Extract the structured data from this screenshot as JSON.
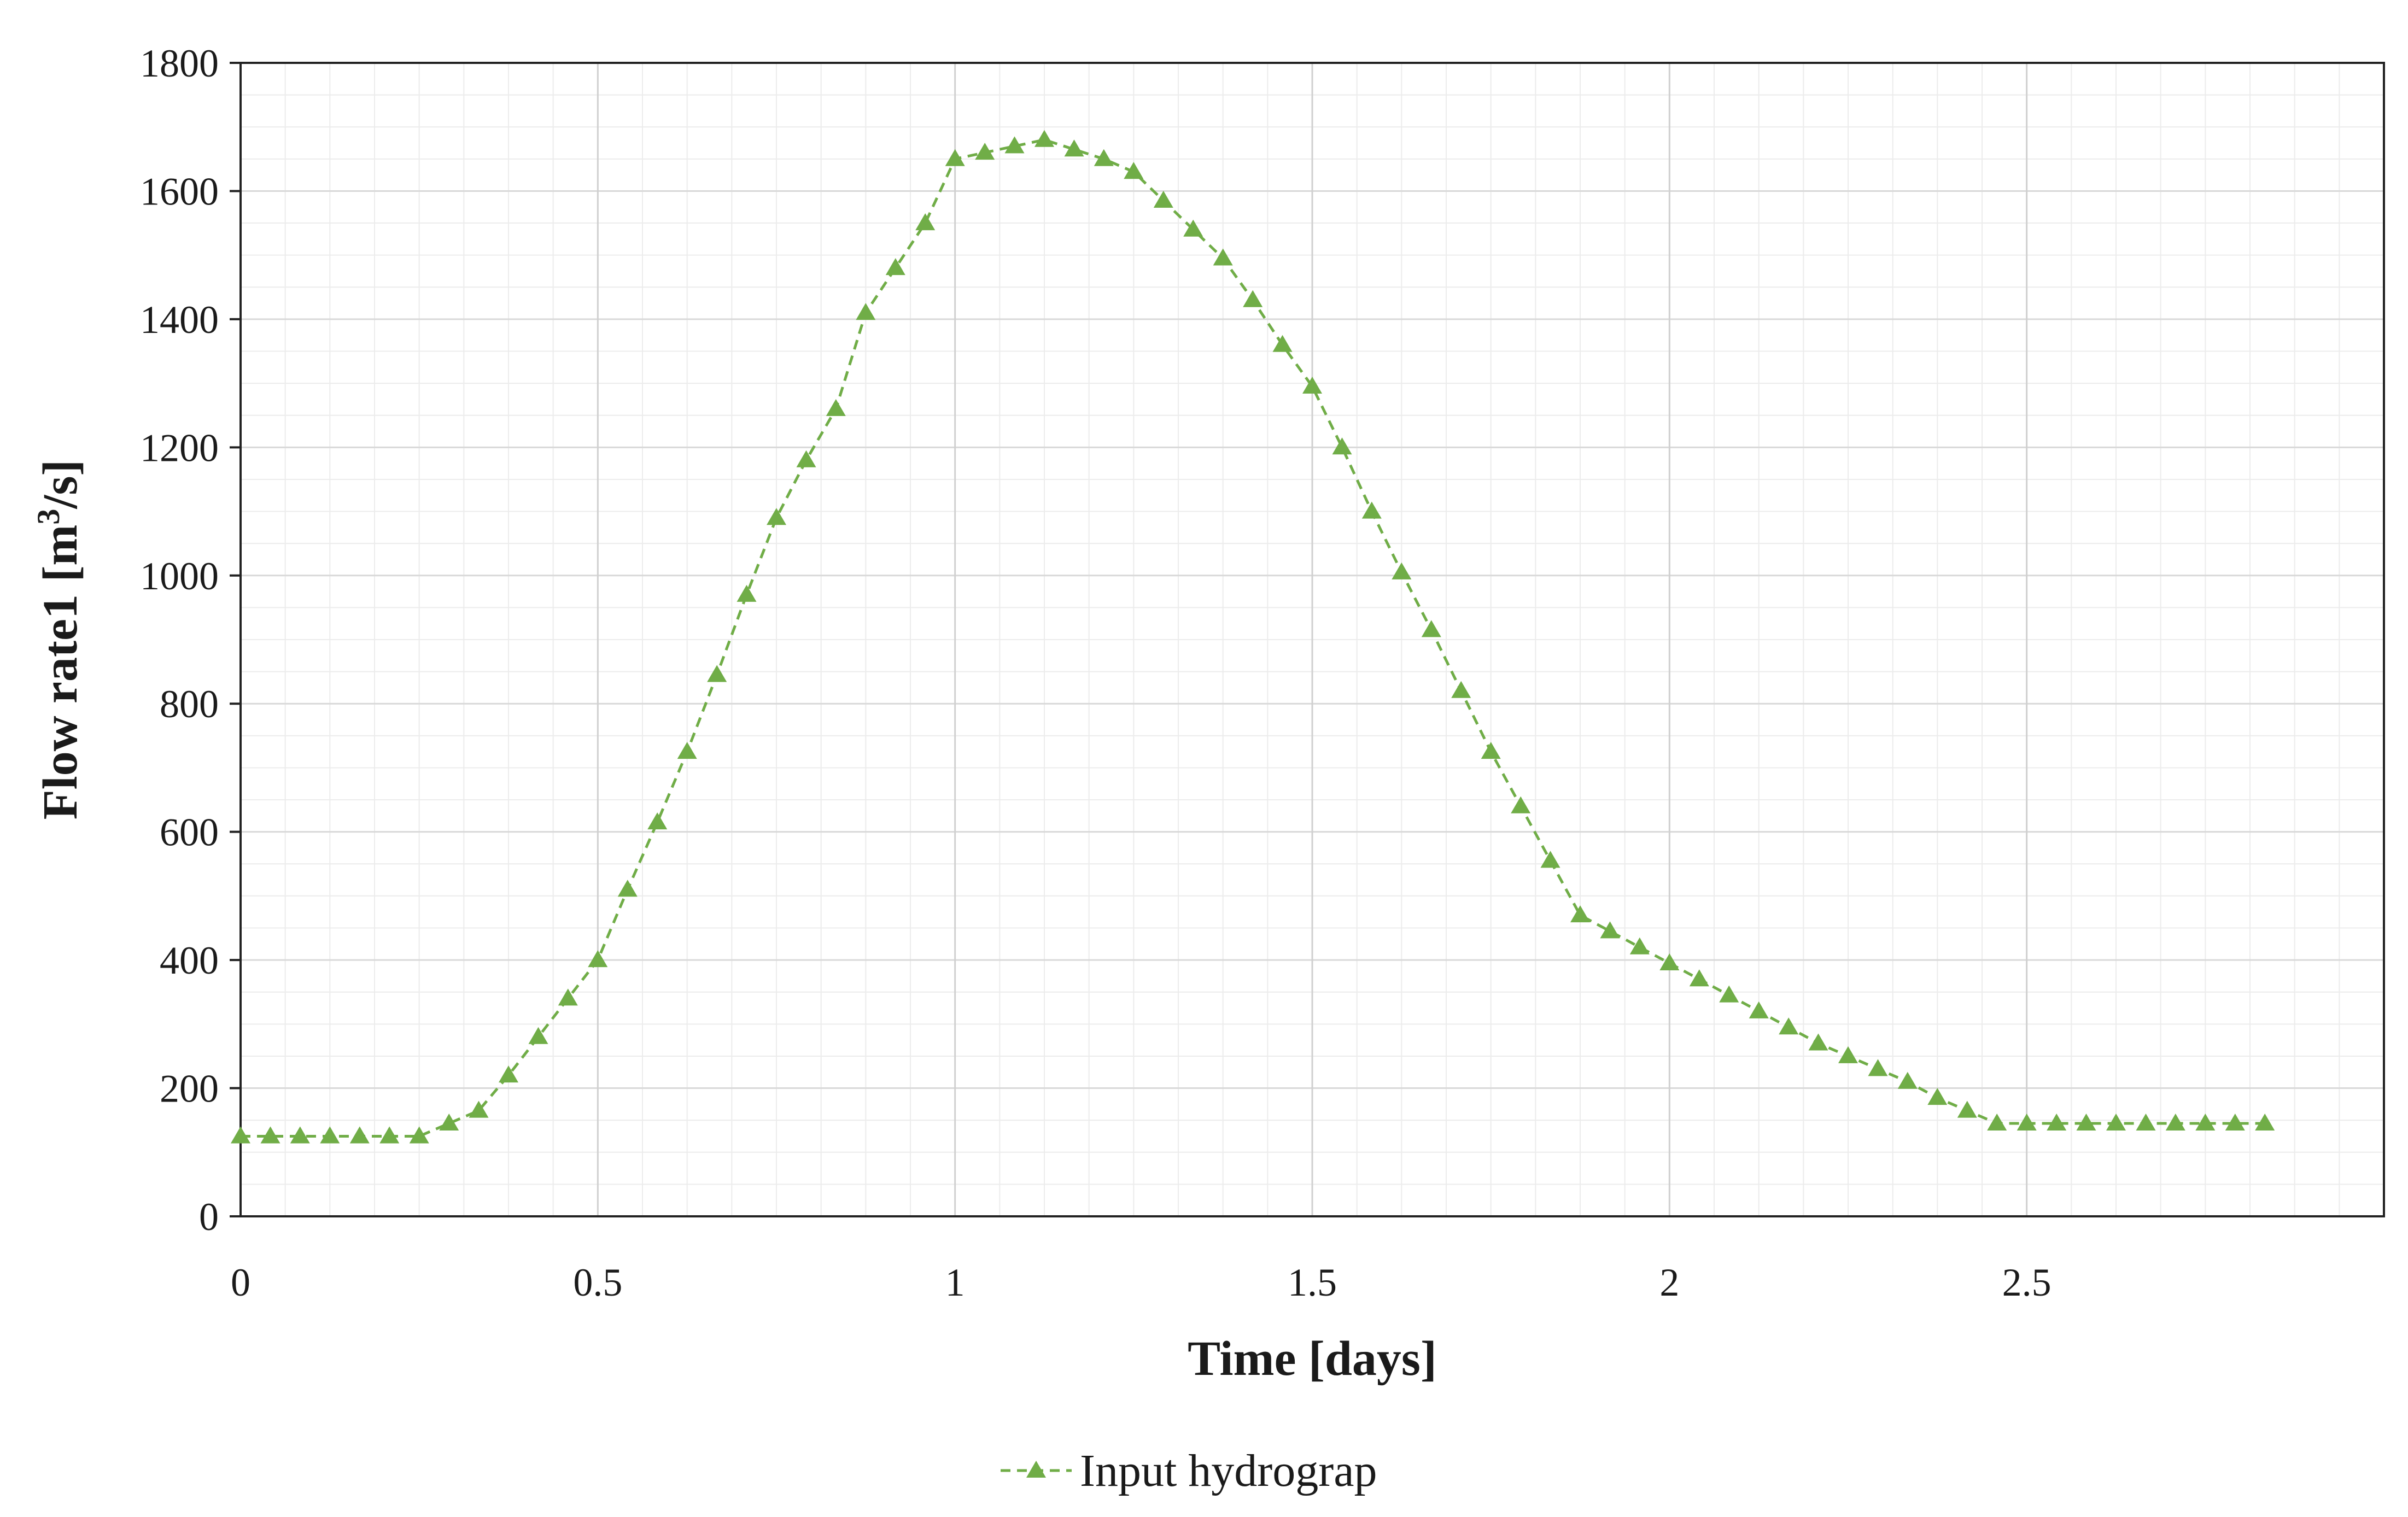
{
  "chart_data": {
    "type": "line",
    "xlabel": "Time [days]",
    "ylabel_main": "Flow rate1 [m",
    "ylabel_sup": "3",
    "ylabel_tail": "/s]",
    "xlim": [
      0,
      3.0
    ],
    "ylim": [
      0,
      1800
    ],
    "x_ticks": [
      "0",
      "0.5",
      "1",
      "1.5",
      "2",
      "2.5"
    ],
    "y_ticks": [
      "0",
      "200",
      "400",
      "600",
      "800",
      "1000",
      "1200",
      "1400",
      "1600",
      "1800"
    ],
    "grid": true,
    "legend_position": "bottom-center",
    "series": [
      {
        "name": "Input hydrograp",
        "color": "#70ad47",
        "marker": "triangle",
        "line_style": "dashed",
        "x": [
          0,
          0.0417,
          0.0833,
          0.125,
          0.1667,
          0.2083,
          0.25,
          0.2917,
          0.3333,
          0.375,
          0.4167,
          0.4583,
          0.5,
          0.5417,
          0.5833,
          0.625,
          0.6667,
          0.7083,
          0.75,
          0.7917,
          0.8333,
          0.875,
          0.9167,
          0.9583,
          1.0,
          1.0417,
          1.0833,
          1.125,
          1.1667,
          1.2083,
          1.25,
          1.2917,
          1.3333,
          1.375,
          1.4167,
          1.4583,
          1.5,
          1.5417,
          1.5833,
          1.625,
          1.6667,
          1.7083,
          1.75,
          1.7917,
          1.8333,
          1.875,
          1.9167,
          1.9583,
          2.0,
          2.0417,
          2.0833,
          2.125,
          2.1667,
          2.2083,
          2.25,
          2.2917,
          2.3333,
          2.375,
          2.4167,
          2.4583,
          2.5,
          2.5417,
          2.5833,
          2.625,
          2.6667,
          2.7083,
          2.75,
          2.7917,
          2.8333
        ],
        "y": [
          125,
          125,
          125,
          125,
          125,
          125,
          125,
          145,
          165,
          220,
          280,
          340,
          400,
          510,
          615,
          725,
          845,
          970,
          1090,
          1180,
          1260,
          1410,
          1480,
          1550,
          1650,
          1660,
          1670,
          1680,
          1665,
          1650,
          1630,
          1585,
          1540,
          1495,
          1430,
          1360,
          1295,
          1200,
          1100,
          1005,
          915,
          820,
          725,
          640,
          555,
          470,
          445,
          420,
          395,
          370,
          345,
          320,
          295,
          270,
          250,
          230,
          210,
          185,
          165,
          145,
          145,
          145,
          145,
          145,
          145,
          145,
          145,
          145,
          145
        ]
      }
    ]
  }
}
